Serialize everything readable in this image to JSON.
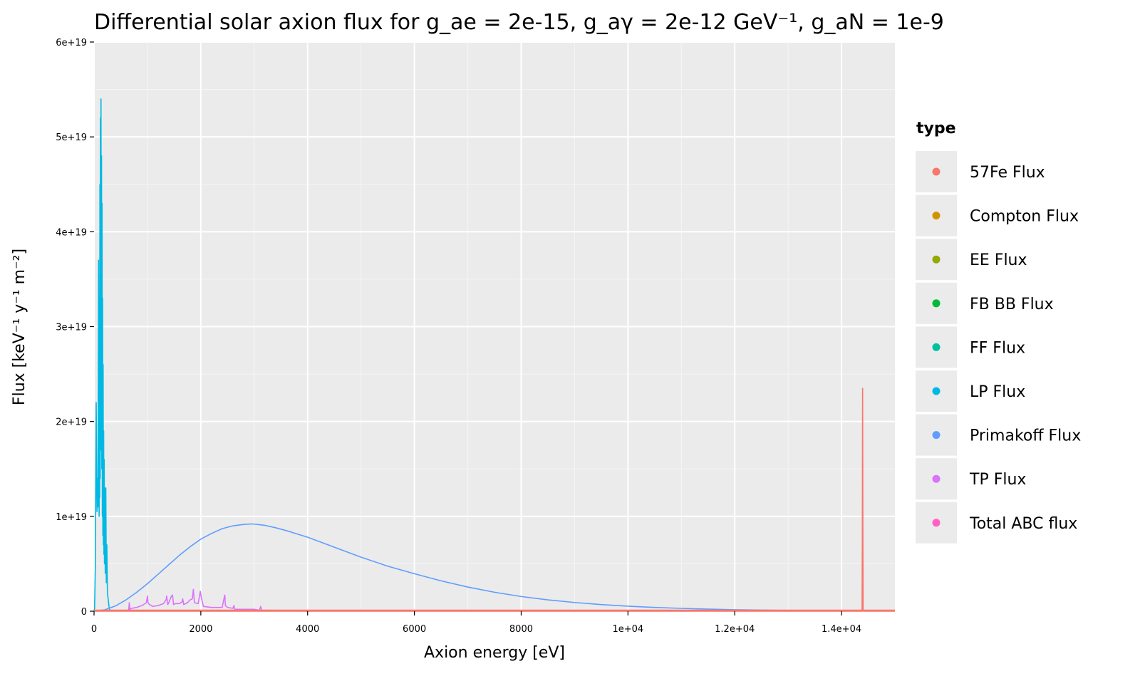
{
  "chart_data": {
    "type": "line",
    "title": "Differential solar axion flux for g_ae = 2e-15, g_aγ = 2e-12 GeV⁻¹, g_aN = 1e-9",
    "xlabel": "Axion energy [eV]",
    "ylabel": "Flux [keV⁻¹ y⁻¹ m⁻²]",
    "xlim": [
      0,
      15000
    ],
    "ylim": [
      0,
      6e+19
    ],
    "x_ticks": [
      {
        "value": 0,
        "label": "0"
      },
      {
        "value": 2000,
        "label": "2000"
      },
      {
        "value": 4000,
        "label": "4000"
      },
      {
        "value": 6000,
        "label": "6000"
      },
      {
        "value": 8000,
        "label": "8000"
      },
      {
        "value": 10000,
        "label": "1e+04"
      },
      {
        "value": 12000,
        "label": "1.2e+04"
      },
      {
        "value": 14000,
        "label": "1.4e+04"
      }
    ],
    "y_ticks": [
      {
        "value": 0,
        "label": "0"
      },
      {
        "value": 1e+19,
        "label": "1e+19"
      },
      {
        "value": 2e+19,
        "label": "2e+19"
      },
      {
        "value": 3e+19,
        "label": "3e+19"
      },
      {
        "value": 4e+19,
        "label": "4e+19"
      },
      {
        "value": 5e+19,
        "label": "5e+19"
      },
      {
        "value": 6e+19,
        "label": "6e+19"
      }
    ],
    "grid": true,
    "legend": {
      "title": "type",
      "position": "right",
      "entries": [
        {
          "name": "57Fe Flux",
          "color": "#F8766D"
        },
        {
          "name": "Compton Flux",
          "color": "#D39200"
        },
        {
          "name": "EE Flux",
          "color": "#93AA00"
        },
        {
          "name": "FB BB Flux",
          "color": "#00BA38"
        },
        {
          "name": "FF Flux",
          "color": "#00C19F"
        },
        {
          "name": "LP Flux",
          "color": "#00B9E3"
        },
        {
          "name": "Primakoff Flux",
          "color": "#619CFF"
        },
        {
          "name": "TP Flux",
          "color": "#DB72FB"
        },
        {
          "name": "Total ABC flux",
          "color": "#FF61C3"
        }
      ]
    },
    "series": [
      {
        "name": "LP Flux",
        "color": "#00B9E3",
        "x": [
          0,
          10,
          25,
          40,
          55,
          65,
          75,
          85,
          95,
          100,
          105,
          110,
          115,
          120,
          125,
          130,
          135,
          140,
          145,
          150,
          155,
          160,
          165,
          170,
          175,
          180,
          185,
          190,
          195,
          200,
          210,
          220,
          230,
          240,
          250,
          260,
          270,
          280,
          290,
          300
        ],
        "y": [
          0,
          3e+17,
          5e+18,
          2.2e+19,
          1.05e+19,
          1.4e+19,
          1.1e+19,
          3.7e+19,
          1e+19,
          3.3e+19,
          1.2e+19,
          4.5e+19,
          1.4e+19,
          5.2e+19,
          2e+19,
          5.4e+19,
          1.7e+19,
          4.8e+19,
          1.5e+19,
          4.3e+19,
          1e+19,
          3.3e+19,
          8e+18,
          2.6e+19,
          7e+18,
          1.9e+19,
          6e+18,
          1.6e+19,
          5e+18,
          1.3e+19,
          4e+18,
          1.3e+19,
          3e+18,
          7e+18,
          2e+18,
          1.5e+18,
          1e+18,
          5e+17,
          2e+17,
          0
        ]
      },
      {
        "name": "Primakoff Flux",
        "color": "#619CFF",
        "x": [
          0,
          200,
          400,
          600,
          800,
          1000,
          1200,
          1400,
          1600,
          1800,
          2000,
          2200,
          2400,
          2600,
          2800,
          2950,
          3000,
          3200,
          3400,
          3600,
          3800,
          4000,
          4500,
          5000,
          5500,
          6000,
          6500,
          7000,
          7500,
          8000,
          8500,
          9000,
          9500,
          10000,
          10500,
          11000,
          11500,
          12000,
          12500,
          13000,
          13500,
          14000,
          14500,
          15000
        ],
        "y": [
          0,
          1.5e+17,
          5.5e+17,
          1.2e+18,
          2e+18,
          2.9e+18,
          3.9e+18,
          4.9e+18,
          5.9e+18,
          6.8e+18,
          7.6e+18,
          8.2e+18,
          8.7e+18,
          9e+18,
          9.15e+18,
          9.2e+18,
          9.18e+18,
          9.05e+18,
          8.8e+18,
          8.5e+18,
          8.15e+18,
          7.8e+18,
          6.75e+18,
          5.7e+18,
          4.75e+18,
          3.95e+18,
          3.2e+18,
          2.55e+18,
          2e+18,
          1.55e+18,
          1.2e+18,
          9.2e+17,
          7e+17,
          5.3e+17,
          4e+17,
          3e+17,
          2.2e+17,
          1.6e+17,
          1.2e+17,
          8.5e+16,
          6e+16,
          4.5e+16,
          3e+16,
          2e+16
        ]
      },
      {
        "name": "TP Flux",
        "color": "#DB72FB",
        "x": [
          600,
          650,
          660,
          670,
          700,
          800,
          900,
          980,
          1000,
          1010,
          1020,
          1040,
          1100,
          1200,
          1300,
          1350,
          1360,
          1380,
          1400,
          1450,
          1470,
          1490,
          1520,
          1600,
          1650,
          1660,
          1680,
          1750,
          1800,
          1840,
          1860,
          1880,
          1950,
          1990,
          2000,
          2010,
          2050,
          2200,
          2400,
          2440,
          2450,
          2460,
          2500,
          2600,
          2620,
          2630,
          2640,
          2800,
          3000,
          3100,
          3120,
          3140,
          3300,
          3600,
          3900,
          4000
        ],
        "y": [
          0,
          2e+17,
          9e+17,
          2e+17,
          3e+17,
          4e+17,
          6e+17,
          9e+17,
          1.6e+18,
          9e+17,
          8e+17,
          7e+17,
          5e+17,
          6e+17,
          8e+17,
          1.2e+18,
          1.6e+18,
          7e+17,
          9e+17,
          1.6e+18,
          1.7e+18,
          7e+17,
          8e+17,
          8e+17,
          1e+18,
          1.3e+18,
          7e+17,
          9e+17,
          1.2e+18,
          1.3e+18,
          2.3e+18,
          9e+17,
          8e+17,
          2.1e+18,
          1.7e+18,
          1.4e+18,
          5e+17,
          4e+17,
          4e+17,
          1.5e+18,
          1.7e+18,
          6e+17,
          4e+17,
          3e+17,
          6e+17,
          3e+17,
          2e+17,
          2e+17,
          2e+17,
          1e+17,
          5e+17,
          1e+17,
          1e+17,
          5e+16,
          2e+16,
          0
        ]
      },
      {
        "name": "57Fe Flux",
        "color": "#F8766D",
        "x": [
          0,
          14385,
          14390,
          14395,
          14400,
          14405,
          15000
        ],
        "y": [
          0,
          0,
          8e+18,
          2.35e+19,
          8e+18,
          0,
          0
        ]
      }
    ]
  }
}
